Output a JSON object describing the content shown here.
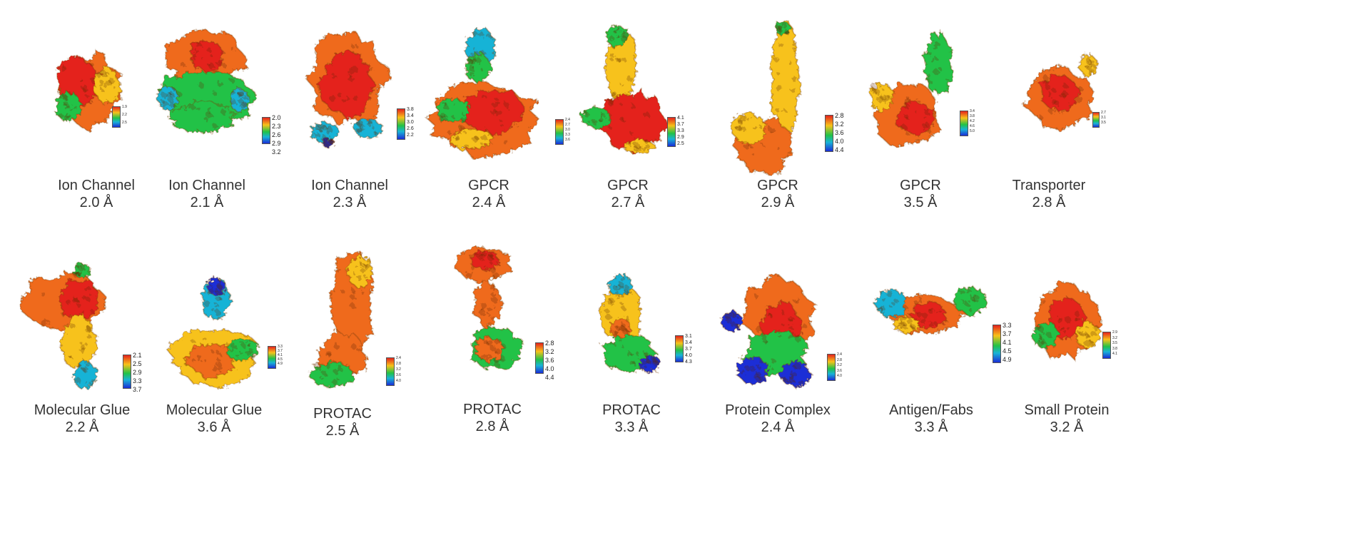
{
  "structures": [
    {
      "type": "Ion Channel",
      "resolution": "2.0 Å",
      "colorbar": [
        "1.9",
        "2.2",
        "2.5"
      ],
      "cbar_size": "tiny"
    },
    {
      "type": "Ion Channel",
      "resolution": "2.1 Å",
      "colorbar": [
        "2.0",
        "2.3",
        "2.6",
        "2.9",
        "3.2"
      ],
      "cbar_size": "normal"
    },
    {
      "type": "Ion Channel",
      "resolution": "2.3 Å",
      "colorbar": [
        "3.8",
        "3.4",
        "3.0",
        "2.6",
        "2.2"
      ],
      "cbar_size": "small"
    },
    {
      "type": "GPCR",
      "resolution": "2.4 Å",
      "colorbar": [
        "2.4",
        "2.7",
        "3.0",
        "3.3",
        "3.6"
      ],
      "cbar_size": "tiny"
    },
    {
      "type": "GPCR",
      "resolution": "2.7 Å",
      "colorbar": [
        "4.1",
        "3.7",
        "3.3",
        "2.9",
        "2.5"
      ],
      "cbar_size": "small"
    },
    {
      "type": "GPCR",
      "resolution": "2.9 Å",
      "colorbar": [
        "2.8",
        "3.2",
        "3.6",
        "4.0",
        "4.4"
      ],
      "cbar_size": "normal"
    },
    {
      "type": "GPCR",
      "resolution": "3.5 Å",
      "colorbar": [
        "3.4",
        "3.8",
        "4.2",
        "4.6",
        "5.0"
      ],
      "cbar_size": "tiny"
    },
    {
      "type": "Transporter",
      "resolution": "2.8 Å",
      "colorbar": [
        "2.7",
        "3.1",
        "3.5"
      ],
      "cbar_size": "tiny"
    },
    {
      "type": "Molecular Glue",
      "resolution": "2.2 Å",
      "colorbar": [
        "2.1",
        "2.5",
        "2.9",
        "3.3",
        "3.7"
      ],
      "cbar_size": "normal"
    },
    {
      "type": "Molecular Glue",
      "resolution": "3.6 Å",
      "colorbar": [
        "3.3",
        "3.7",
        "4.1",
        "4.5",
        "4.9"
      ],
      "cbar_size": "tiny"
    },
    {
      "type": "PROTAC",
      "resolution": "2.5 Å",
      "colorbar": [
        "2.4",
        "2.8",
        "3.2",
        "3.6",
        "4.0"
      ],
      "cbar_size": "tiny"
    },
    {
      "type": "PROTAC",
      "resolution": "2.8 Å",
      "colorbar": [
        "2.8",
        "3.2",
        "3.6",
        "4.0",
        "4.4"
      ],
      "cbar_size": "normal"
    },
    {
      "type": "PROTAC",
      "resolution": "3.3 Å",
      "colorbar": [
        "3.1",
        "3.4",
        "3.7",
        "4.0",
        "4.3"
      ],
      "cbar_size": "small"
    },
    {
      "type": "Protein Complex",
      "resolution": "2.4 Å",
      "colorbar": [
        "2.4",
        "2.8",
        "3.2",
        "3.6",
        "4.0"
      ],
      "cbar_size": "tiny"
    },
    {
      "type": "Antigen/Fabs",
      "resolution": "3.3 Å",
      "colorbar": [
        "3.3",
        "3.7",
        "4.1",
        "4.5",
        "4.9"
      ],
      "cbar_size": "normal"
    },
    {
      "type": "Small Protein",
      "resolution": "3.2 Å",
      "colorbar": [
        "2.9",
        "3.2",
        "3.5",
        "3.8",
        "4.1"
      ],
      "cbar_size": "tiny"
    }
  ],
  "colors": {
    "high_res": "#e4231c",
    "mid_high": "#f7c21a",
    "mid": "#22c247",
    "mid_low": "#19b3d6",
    "low_res": "#1a2dd6",
    "caption": "#333333"
  }
}
